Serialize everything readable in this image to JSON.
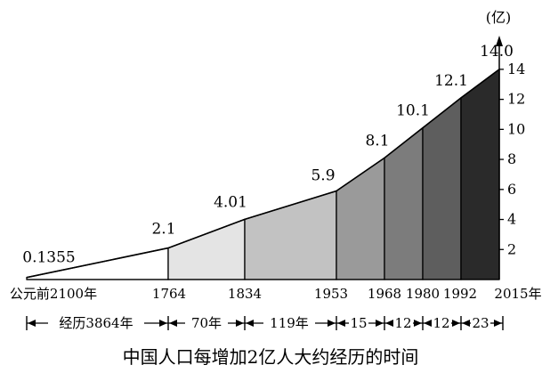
{
  "chart_data": {
    "type": "area",
    "title": "中国人口每增加2亿人大约经历的时间",
    "unit_label": "(亿)",
    "ylim": [
      0,
      15
    ],
    "y_ticks": [
      "2",
      "4",
      "6",
      "8",
      "10",
      "12",
      "14"
    ],
    "points": [
      {
        "x": "公元前2100年",
        "value": 0.1355,
        "label": "0.1355"
      },
      {
        "x": "1764",
        "value": 2.1,
        "label": "2.1"
      },
      {
        "x": "1834",
        "value": 4.01,
        "label": "4.01"
      },
      {
        "x": "1953",
        "value": 5.9,
        "label": "5.9"
      },
      {
        "x": "1968",
        "value": 8.1,
        "label": "8.1"
      },
      {
        "x": "1980",
        "value": 10.1,
        "label": "10.1"
      },
      {
        "x": "1992",
        "value": 12.1,
        "label": "12.1"
      },
      {
        "x": "2015年",
        "value": 14.0,
        "label": "14.0"
      }
    ],
    "segments": [
      {
        "label": "经历3864年",
        "shade": "#ffffff"
      },
      {
        "label": "70年",
        "shade": "#e4e4e4"
      },
      {
        "label": "119年",
        "shade": "#c2c2c2"
      },
      {
        "label": "15",
        "shade": "#9a9a9a"
      },
      {
        "label": "12",
        "shade": "#7c7c7c"
      },
      {
        "label": "12",
        "shade": "#5e5e5e"
      },
      {
        "label": "23",
        "shade": "#2a2a2a"
      }
    ]
  }
}
